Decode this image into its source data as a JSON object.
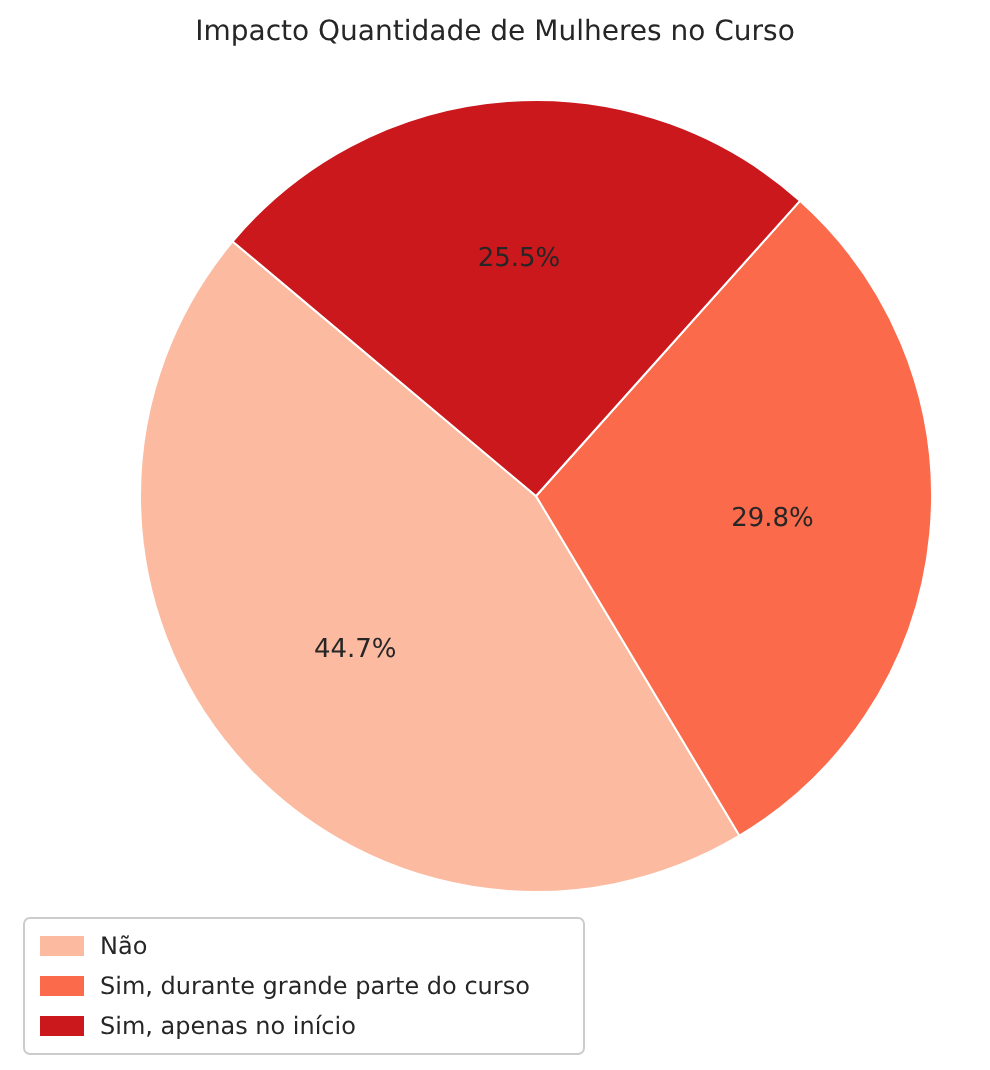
{
  "chart_data": {
    "type": "pie",
    "title": "Impacto Quantidade de Mulheres no Curso",
    "categories": [
      "Não",
      "Sim, durante grande parte do curso",
      "Sim, apenas no início"
    ],
    "values": [
      44.7,
      29.8,
      25.5
    ],
    "colors": [
      "#fcbba1",
      "#fb6a4a",
      "#cb181d"
    ],
    "legend": "bottom left",
    "value_labels": [
      "44.7%",
      "29.8%",
      "25.5%"
    ]
  }
}
